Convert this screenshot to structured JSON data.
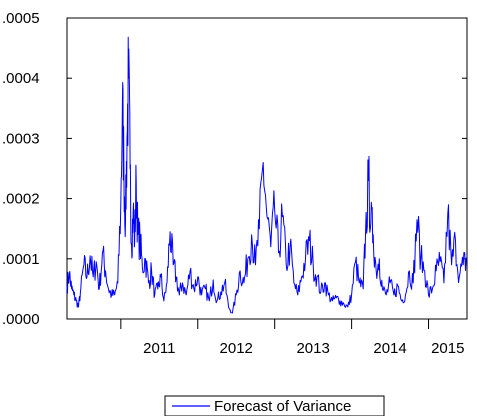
{
  "chart_data": {
    "type": "line",
    "title": "",
    "xlabel": "",
    "ylabel": "",
    "ylim": [
      0,
      0.0005
    ],
    "y_ticks": [
      0,
      0.0001,
      0.0002,
      0.0003,
      0.0004,
      0.0005
    ],
    "y_tick_labels": [
      ".0000",
      ".0001",
      ".0002",
      ".0003",
      ".0004",
      ".0005"
    ],
    "x_range": [
      2010.3,
      2015.5
    ],
    "x_tick_labels": [
      "2011",
      "2012",
      "2013",
      "2014",
      "2015"
    ],
    "x_year_boundaries": [
      2011,
      2012,
      2013,
      2014,
      2015
    ],
    "grid": false,
    "legend_position": "bottom-center",
    "line_color": "#0000ff",
    "series": [
      {
        "name": "Forecast of Variance",
        "x": [
          2010.3,
          2010.33,
          2010.36,
          2010.39,
          2010.42,
          2010.45,
          2010.48,
          2010.52,
          2010.56,
          2010.6,
          2010.64,
          2010.68,
          2010.72,
          2010.76,
          2010.8,
          2010.84,
          2010.88,
          2010.92,
          2010.96,
          2011.0,
          2011.02,
          2011.04,
          2011.06,
          2011.08,
          2011.1,
          2011.12,
          2011.14,
          2011.16,
          2011.18,
          2011.2,
          2011.22,
          2011.25,
          2011.28,
          2011.32,
          2011.36,
          2011.4,
          2011.44,
          2011.48,
          2011.52,
          2011.56,
          2011.6,
          2011.64,
          2011.68,
          2011.72,
          2011.76,
          2011.8,
          2011.85,
          2011.9,
          2011.95,
          2012.0,
          2012.05,
          2012.1,
          2012.15,
          2012.2,
          2012.25,
          2012.3,
          2012.35,
          2012.4,
          2012.45,
          2012.5,
          2012.55,
          2012.6,
          2012.65,
          2012.7,
          2012.75,
          2012.8,
          2012.85,
          2012.9,
          2012.95,
          2013.0,
          2013.05,
          2013.1,
          2013.15,
          2013.2,
          2013.25,
          2013.3,
          2013.35,
          2013.4,
          2013.45,
          2013.5,
          2013.55,
          2013.6,
          2013.65,
          2013.7,
          2013.75,
          2013.8,
          2013.85,
          2013.9,
          2013.95,
          2014.0,
          2014.05,
          2014.1,
          2014.15,
          2014.18,
          2014.22,
          2014.25,
          2014.28,
          2014.32,
          2014.36,
          2014.4,
          2014.45,
          2014.5,
          2014.55,
          2014.6,
          2014.65,
          2014.7,
          2014.75,
          2014.8,
          2014.85,
          2014.9,
          2014.95,
          2015.0,
          2015.05,
          2015.1,
          2015.15,
          2015.2,
          2015.25,
          2015.3,
          2015.35,
          2015.4,
          2015.45,
          2015.5
        ],
        "y": [
          5.5e-05,
          7.5e-05,
          5e-05,
          4e-05,
          3e-05,
          2e-05,
          5e-05,
          9e-05,
          7e-05,
          0.000105,
          7e-05,
          9.5e-05,
          5e-05,
          0.00011,
          8e-05,
          5e-05,
          4e-05,
          4e-05,
          6e-05,
          0.00019,
          0.00036,
          0.00025,
          0.00016,
          0.0003,
          0.0004,
          0.00025,
          0.00012,
          0.00018,
          0.00013,
          0.00023,
          0.00014,
          0.00013,
          8.5e-05,
          0.0001,
          6e-05,
          8e-05,
          4e-05,
          5e-05,
          7e-05,
          3e-05,
          6e-05,
          0.000145,
          9e-05,
          7e-05,
          4e-05,
          6e-05,
          4e-05,
          8e-05,
          5e-05,
          7e-05,
          4e-05,
          5e-05,
          3e-05,
          6.5e-05,
          3e-05,
          4.5e-05,
          6e-05,
          2e-05,
          1e-05,
          4e-05,
          8e-05,
          6e-05,
          0.0001,
          0.00014,
          9e-05,
          0.00015,
          0.00026,
          0.00017,
          0.00012,
          0.00018,
          0.00011,
          0.00017,
          9e-05,
          0.00012,
          6e-05,
          4e-05,
          7e-05,
          0.0001,
          0.00013,
          9e-05,
          7e-05,
          4.5e-05,
          6e-05,
          4e-05,
          3e-05,
          3.5e-05,
          3e-05,
          2.5e-05,
          2e-05,
          4e-05,
          9.5e-05,
          6e-05,
          5e-05,
          0.00014,
          0.00023,
          0.00016,
          0.00014,
          8e-05,
          0.0001,
          5e-05,
          4e-05,
          6e-05,
          4e-05,
          5.5e-05,
          3e-05,
          4e-05,
          8e-05,
          6e-05,
          0.000165,
          0.0001,
          8e-05,
          4e-05,
          5e-05,
          8e-05,
          9.5e-05,
          6e-05,
          0.000175,
          9e-05,
          0.00013,
          7e-05,
          9e-05,
          0.0001
        ]
      }
    ]
  }
}
